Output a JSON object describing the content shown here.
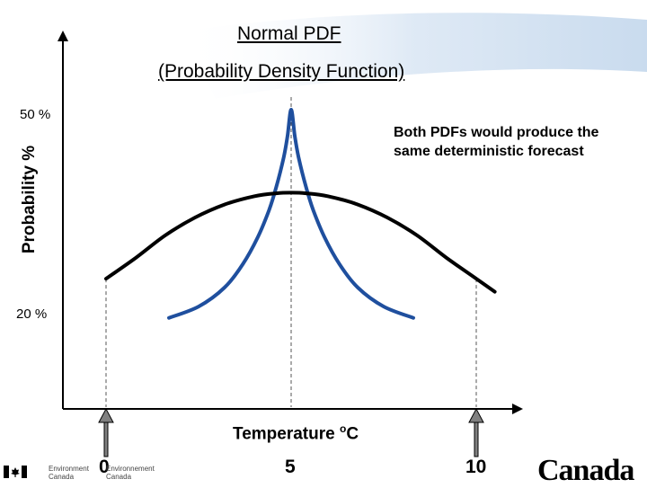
{
  "title": "Normal PDF",
  "subtitle": "(Probability Density Function)",
  "y_axis_label": "Probability %",
  "y_ticks": [
    "50 %",
    "20 %"
  ],
  "x_axis_label": "Temperature",
  "x_axis_unit_sup": "o",
  "x_axis_unit": "C",
  "x_ticks": [
    "0",
    "5",
    "10"
  ],
  "annotation": {
    "line1": "Both PDFs would produce the",
    "line2": "same deterministic forecast"
  },
  "footer": {
    "dept_en_1": "Environment",
    "dept_en_2": "Canada",
    "dept_fr_1": "Environnement",
    "dept_fr_2": "Canada",
    "wordmark": "Canada"
  },
  "colors": {
    "narrow_curve": "#1f4f9e",
    "wide_curve": "#000000",
    "arrow": "#808080",
    "background_swoosh": "#d9e6f3"
  },
  "chart_data": {
    "type": "line",
    "title": "Normal PDF",
    "subtitle": "(Probability Density Function)",
    "xlabel": "Temperature oC",
    "ylabel": "Probability %",
    "x_ticks": [
      0,
      5,
      10
    ],
    "y_ticks": [
      20,
      50
    ],
    "xlim": [
      -1.1,
      10.5
    ],
    "ylim": [
      14,
      50
    ],
    "mean": 5,
    "series": [
      {
        "x": [
          1.7,
          2.5,
          3.2,
          3.7,
          4.1,
          4.4,
          4.6,
          4.8,
          4.9,
          5.0,
          5.1,
          5.2,
          5.4,
          5.6,
          5.9,
          6.3,
          6.8,
          7.5,
          8.3
        ],
        "y": [
          14.9,
          16.8,
          20.0,
          24.0,
          28.5,
          33.0,
          37.0,
          42.0,
          45.5,
          50.0,
          45.5,
          42.0,
          37.0,
          33.0,
          28.5,
          24.0,
          20.0,
          16.8,
          14.9
        ]
      },
      {
        "x": [
          0.0,
          0.8,
          1.6,
          2.4,
          3.2,
          4.0,
          4.6,
          5.0,
          5.4,
          6.0,
          6.8,
          7.6,
          8.4,
          9.2,
          10.0,
          10.5
        ],
        "y": [
          21.5,
          25.0,
          28.8,
          31.8,
          34.0,
          35.4,
          35.9,
          36.0,
          35.9,
          35.4,
          34.0,
          31.8,
          28.8,
          25.0,
          21.5,
          19.3
        ]
      }
    ],
    "reference_lines": [
      0,
      5,
      10
    ],
    "markers": [
      0,
      10
    ],
    "grid": false,
    "legend": "none"
  }
}
